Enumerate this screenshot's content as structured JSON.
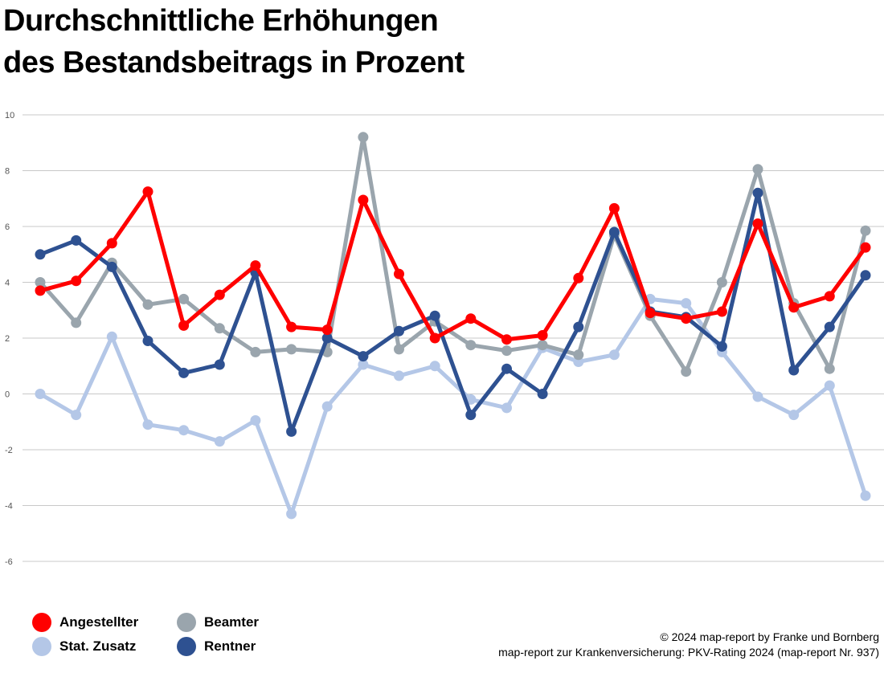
{
  "title_lines": [
    "Durchschnittliche Erhöhungen",
    "des Bestandsbeitrags in Prozent"
  ],
  "footer": {
    "line1": "© 2024 map-report by Franke und Bornberg",
    "line2": "map-report zur Krankenversicherung: PKV-Rating 2024 (map-report Nr. 937)"
  },
  "chart_data": {
    "type": "line",
    "title": "Durchschnittliche Erhöhungen des Bestandsbeitrags in Prozent",
    "xlabel": "",
    "ylabel": "",
    "ylim": [
      -6,
      10
    ],
    "yticks": [
      10,
      8,
      6,
      4,
      2,
      0,
      -2,
      -4,
      -6
    ],
    "grid": true,
    "legend_position": "bottom-left",
    "x": [
      1,
      2,
      3,
      4,
      5,
      6,
      7,
      8,
      9,
      10,
      11,
      12,
      13,
      14,
      15,
      16,
      17,
      18,
      19,
      20,
      21,
      22,
      23,
      24
    ],
    "series": [
      {
        "name": "Stat. Zusatz",
        "color": "#b4c7e7",
        "values": [
          0.0,
          -0.75,
          2.05,
          -1.1,
          -1.3,
          -1.7,
          -0.95,
          -4.3,
          -0.45,
          1.05,
          0.65,
          1.0,
          -0.2,
          -0.5,
          1.65,
          1.15,
          1.4,
          3.4,
          3.25,
          1.5,
          -0.1,
          -0.75,
          0.3,
          -3.65
        ]
      },
      {
        "name": "Beamter",
        "color": "#9aa5ad",
        "values": [
          4.0,
          2.55,
          4.7,
          3.2,
          3.4,
          2.35,
          1.5,
          1.6,
          1.5,
          9.2,
          1.6,
          2.6,
          1.75,
          1.55,
          1.75,
          1.4,
          5.7,
          2.8,
          0.8,
          4.0,
          8.05,
          3.25,
          0.9,
          5.85
        ]
      },
      {
        "name": "Rentner",
        "color": "#2e5191",
        "values": [
          5.0,
          5.5,
          4.55,
          1.9,
          0.75,
          1.05,
          4.35,
          -1.35,
          2.0,
          1.35,
          2.25,
          2.8,
          -0.75,
          0.9,
          0.0,
          2.4,
          5.8,
          2.95,
          2.75,
          1.7,
          7.2,
          0.85,
          2.4,
          4.25
        ]
      },
      {
        "name": "Angestellter",
        "color": "#ff0000",
        "values": [
          3.7,
          4.05,
          5.4,
          7.25,
          2.45,
          3.55,
          4.6,
          2.4,
          2.3,
          6.95,
          4.3,
          2.0,
          2.7,
          1.95,
          2.1,
          4.15,
          6.65,
          2.9,
          2.7,
          2.95,
          6.1,
          3.1,
          3.5,
          5.25
        ]
      }
    ]
  },
  "legend": [
    {
      "label": "Angestellter",
      "color": "#ff0000"
    },
    {
      "label": "Stat. Zusatz",
      "color": "#b4c7e7"
    },
    {
      "label": "Beamter",
      "color": "#9aa5ad"
    },
    {
      "label": "Rentner",
      "color": "#2e5191"
    }
  ]
}
